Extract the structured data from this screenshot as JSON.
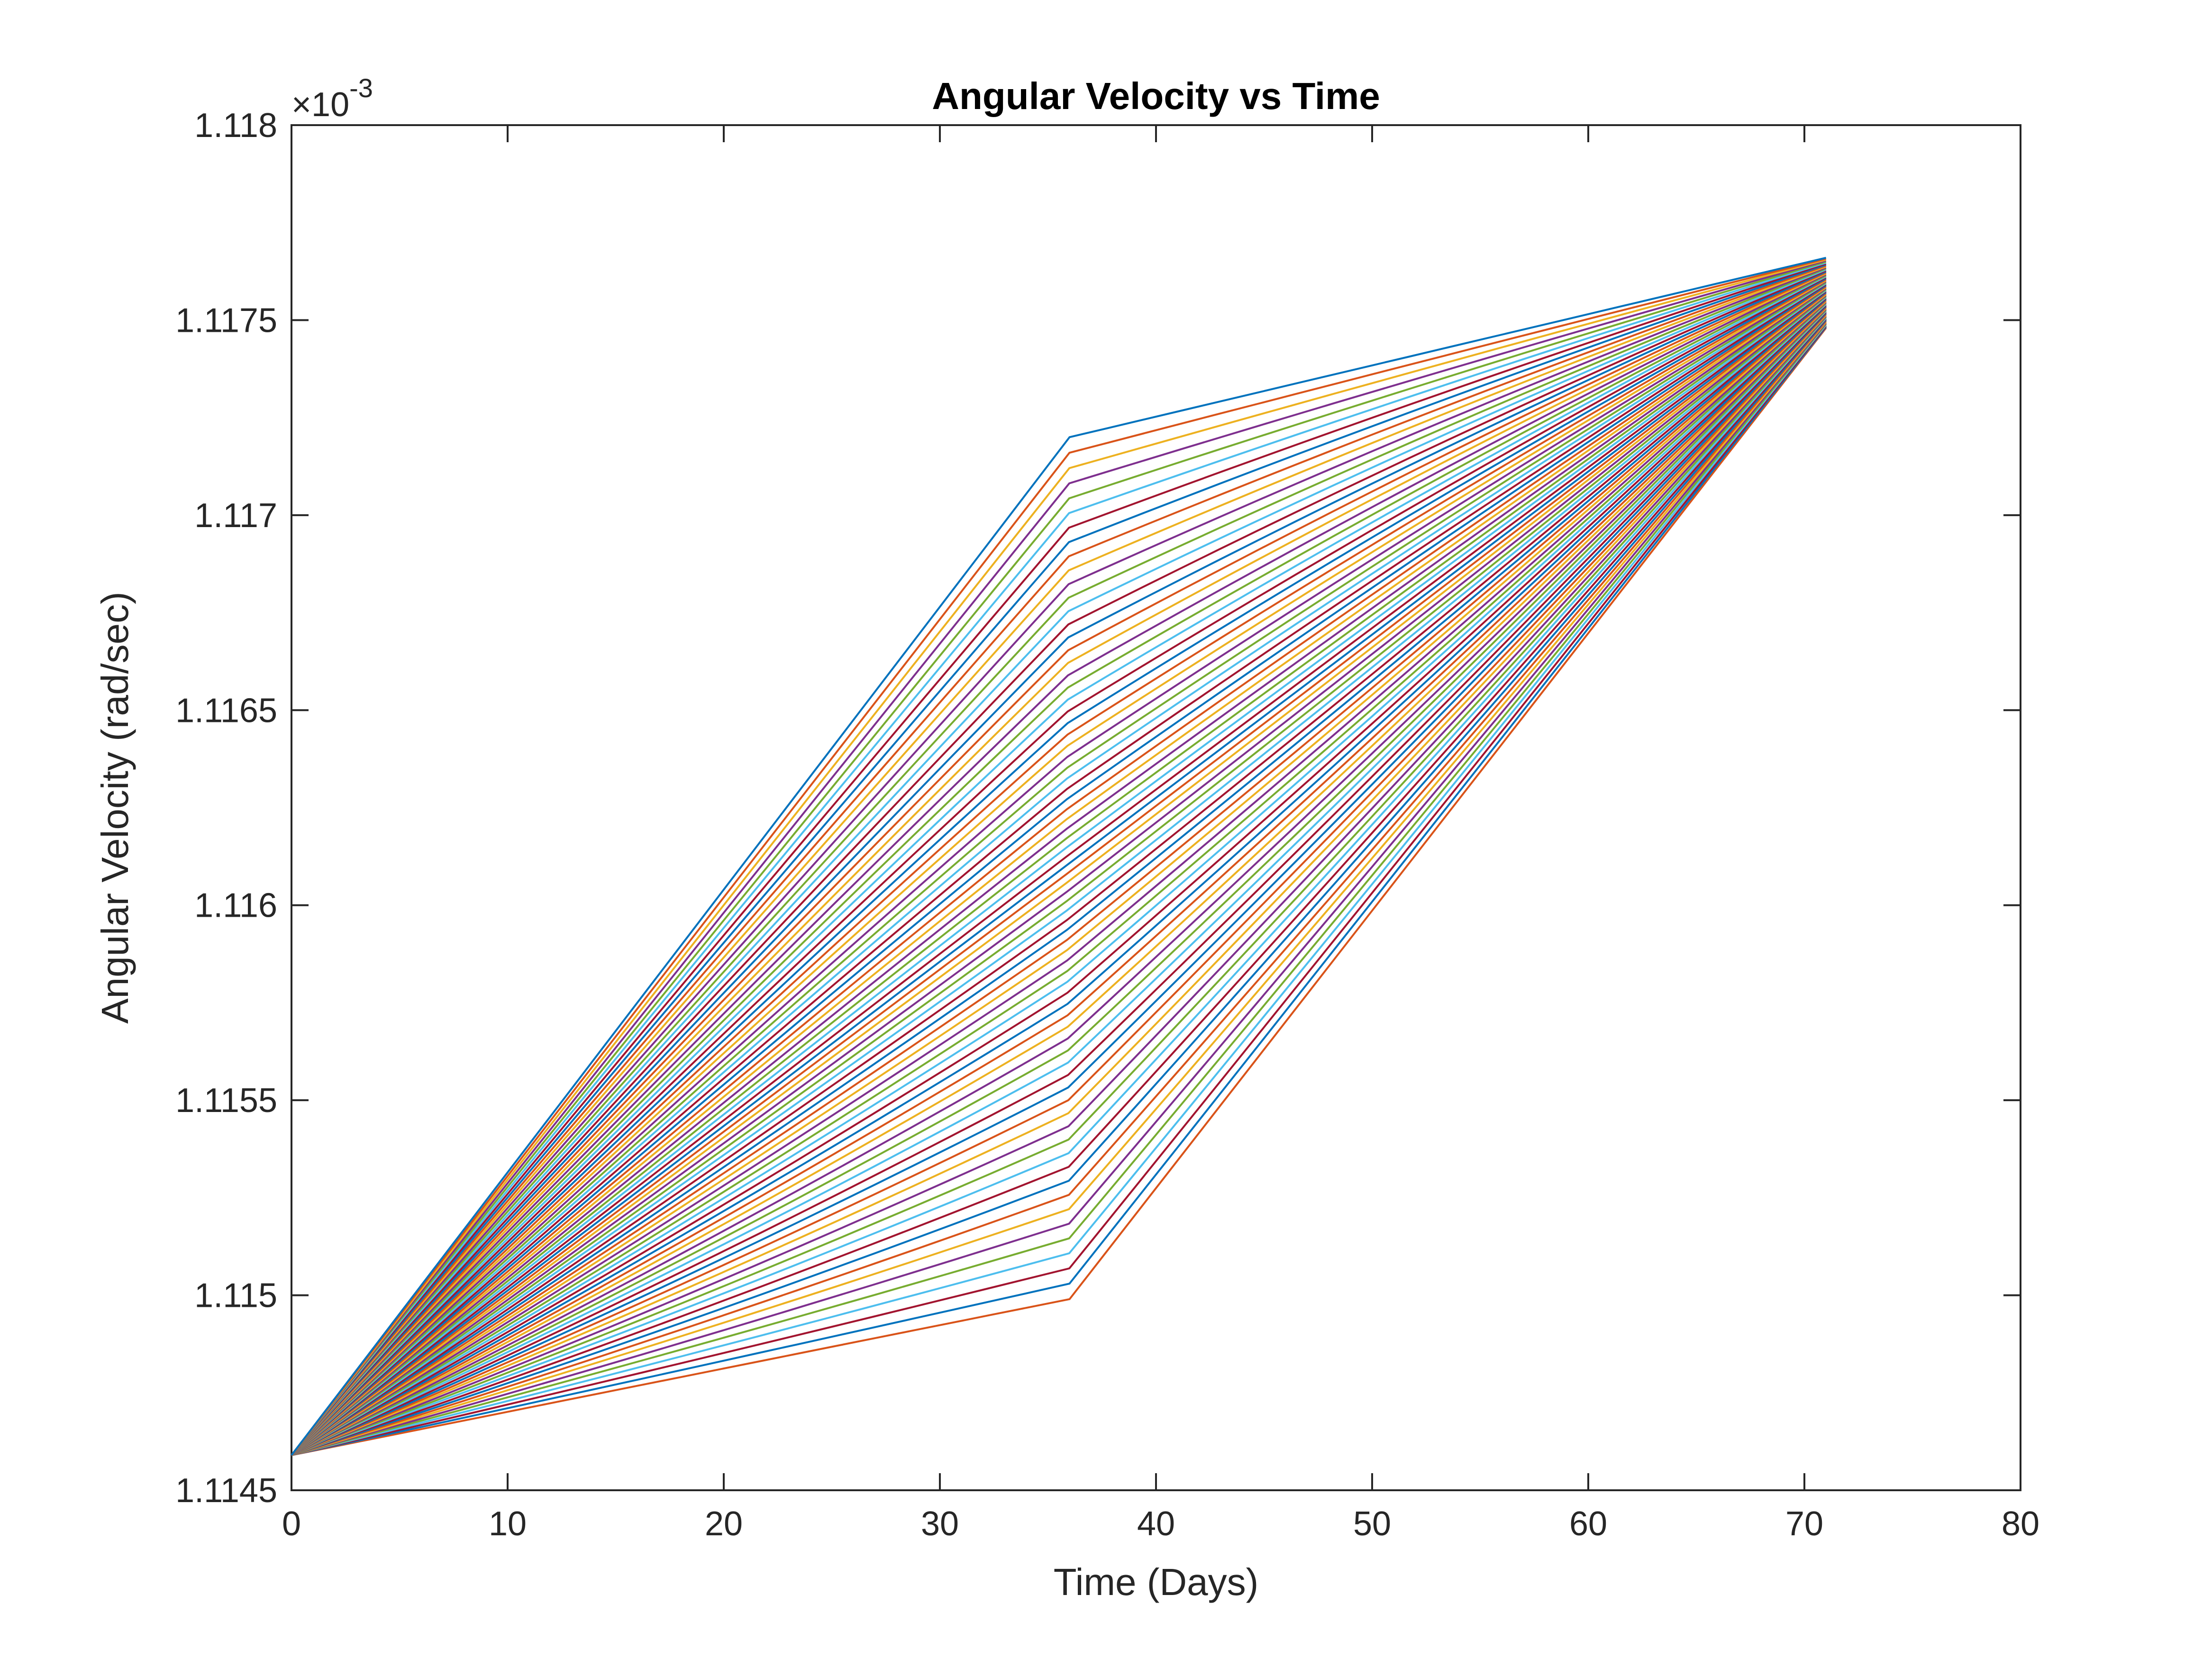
{
  "chart_data": {
    "type": "line",
    "title": "Angular Velocity vs Time",
    "xlabel": "Time (Days)",
    "ylabel": "Angular Velocity (rad/sec)",
    "xlim": [
      0,
      80
    ],
    "ylim": [
      1.1145,
      1.118
    ],
    "y_scale_factor": "×10",
    "y_scale_exponent": "-3",
    "grid": false,
    "legend": "none",
    "x_ticks": [
      "0",
      "10",
      "20",
      "30",
      "40",
      "50",
      "60",
      "70",
      "80"
    ],
    "x_tick_values": [
      0,
      10,
      20,
      30,
      40,
      50,
      60,
      70,
      80
    ],
    "y_ticks": [
      "1.1145",
      "1.115",
      "1.1155",
      "1.116",
      "1.1165",
      "1.117",
      "1.1175",
      "1.118"
    ],
    "y_tick_values": [
      1.1145,
      1.115,
      1.1155,
      1.116,
      1.1165,
      1.117,
      1.1175,
      1.118
    ],
    "series_count": 72,
    "colors": [
      "#0072BD",
      "#D95319",
      "#EDB120",
      "#7E2F8E",
      "#77AC30",
      "#4DBEEE",
      "#A2142F"
    ],
    "series_family": {
      "description_of_envelope": "each series starts at t=0, rises, bends at a break day, and ends at t=71",
      "start": [
        0,
        1.11459
      ],
      "end_day": 71,
      "end_y_range": [
        1.11748,
        1.11766
      ],
      "upper_envelope": [
        [
          0,
          1.11459
        ],
        [
          36,
          1.1172
        ],
        [
          71,
          1.11766
        ]
      ],
      "lower_envelope": [
        [
          0,
          1.11459
        ],
        [
          36,
          1.11499
        ],
        [
          71,
          1.11748
        ]
      ]
    }
  }
}
